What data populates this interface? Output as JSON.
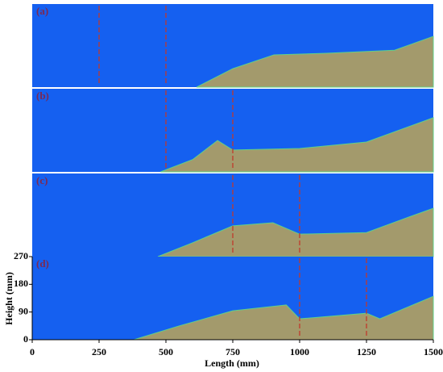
{
  "chart_data": {
    "type": "area",
    "xlabel": "Length (mm)",
    "ylabel": "Height (mm)",
    "xlim": [
      0,
      1500
    ],
    "xticks": [
      0,
      250,
      500,
      750,
      1000,
      1250,
      1500
    ],
    "ylim": [
      0,
      270
    ],
    "yticks": [
      0,
      90,
      180,
      270
    ],
    "background": "#1560f0",
    "color": "#a39a6c",
    "marker_color": "#c0392b",
    "panels": [
      {
        "label": "(a)",
        "x": [
          615,
          750,
          904,
          1100,
          1355,
          1500
        ],
        "values": [
          0,
          60,
          105,
          110,
          120,
          165
        ],
        "markers": [
          250,
          500
        ]
      },
      {
        "label": "(b)",
        "x": [
          480,
          600,
          693,
          750,
          1000,
          1250,
          1500
        ],
        "values": [
          0,
          40,
          102,
          71,
          76,
          97,
          176
        ],
        "markers": [
          500,
          750
        ]
      },
      {
        "label": "(c)",
        "x": [
          470,
          600,
          750,
          900,
          1000,
          1250,
          1400,
          1500
        ],
        "values": [
          0,
          45,
          100,
          110,
          73,
          78,
          126,
          157
        ],
        "markers": [
          750,
          1000
        ]
      },
      {
        "label": "(d)",
        "x": [
          380,
          550,
          750,
          950,
          1000,
          1250,
          1300,
          1500
        ],
        "values": [
          0,
          45,
          94,
          113,
          68,
          86,
          68,
          141
        ],
        "markers": [
          1000,
          1250
        ]
      }
    ]
  }
}
